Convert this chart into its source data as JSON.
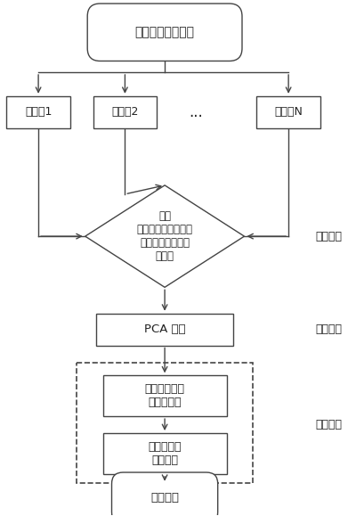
{
  "title": "管道漏磁检测数据",
  "segment_labels": [
    "数据段1",
    "数据段2",
    "...",
    "数据段N"
  ],
  "diamond_lines": [
    "利用",
    "平均绝对偏差值筛选",
    "出含有缺陷信息的",
    "数据段"
  ],
  "pca_text": "PCA 压缩",
  "wavelet_line1": "整数提升小波",
  "wavelet_line2": "分解阈值化",
  "arith_line1": "自适应算术",
  "arith_line2": "编码压缩",
  "storage_text": "数据存储",
  "stage1_label": "第一阶段",
  "stage2_label": "第二阶段",
  "stage3_label": "第三阶段",
  "bg_color": "#ffffff",
  "text_color": "#222222",
  "edge_color": "#444444",
  "fig_w": 4.0,
  "fig_h": 5.79,
  "dpi": 100
}
